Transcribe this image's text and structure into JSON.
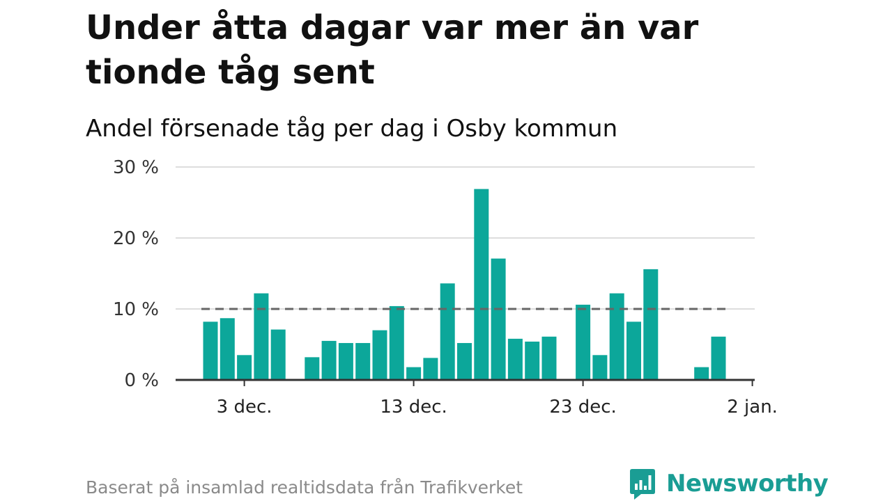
{
  "title": "Under åtta dagar var mer än var tionde tåg sent",
  "subtitle": "Andel försenade tåg per dag i Osby kommun",
  "footer": "Baserat på insamlad realtidsdata från Trafikverket",
  "brand": "Newsworthy",
  "colors": {
    "bar": "#0ca79a",
    "brand": "#1a9d94",
    "reference_line": "#666666",
    "grid": "#dddddd"
  },
  "chart_data": {
    "type": "bar",
    "x": [
      "2024-12-01",
      "2024-12-02",
      "2024-12-03",
      "2024-12-04",
      "2024-12-05",
      "2024-12-06",
      "2024-12-07",
      "2024-12-08",
      "2024-12-09",
      "2024-12-10",
      "2024-12-11",
      "2024-12-12",
      "2024-12-13",
      "2024-12-14",
      "2024-12-15",
      "2024-12-16",
      "2024-12-17",
      "2024-12-18",
      "2024-12-19",
      "2024-12-20",
      "2024-12-21",
      "2024-12-22",
      "2024-12-23",
      "2024-12-24",
      "2024-12-25",
      "2024-12-26",
      "2024-12-27",
      "2024-12-28",
      "2024-12-29",
      "2024-12-30",
      "2024-12-31",
      "2025-01-01"
    ],
    "values": [
      8.2,
      8.7,
      3.5,
      12.2,
      7.1,
      null,
      3.2,
      5.5,
      5.2,
      5.2,
      7.0,
      10.4,
      1.8,
      3.1,
      13.6,
      5.2,
      26.9,
      17.1,
      5.8,
      5.4,
      6.1,
      null,
      10.6,
      3.5,
      12.2,
      8.2,
      15.6,
      null,
      null,
      1.8,
      6.1,
      null
    ],
    "ylim": [
      0,
      30
    ],
    "yticks": [
      0,
      10,
      20,
      30
    ],
    "ytick_labels": [
      "0 %",
      "10 %",
      "20 %",
      "30 %"
    ],
    "xticks": [
      "2024-12-03",
      "2024-12-13",
      "2024-12-23",
      "2025-01-02"
    ],
    "xtick_labels": [
      "3 dec.",
      "13 dec.",
      "23 dec.",
      "2 jan."
    ],
    "reference_line": {
      "y": 10,
      "style": "dashed"
    },
    "xlabel": "",
    "ylabel": "",
    "grid": "horizontal"
  }
}
